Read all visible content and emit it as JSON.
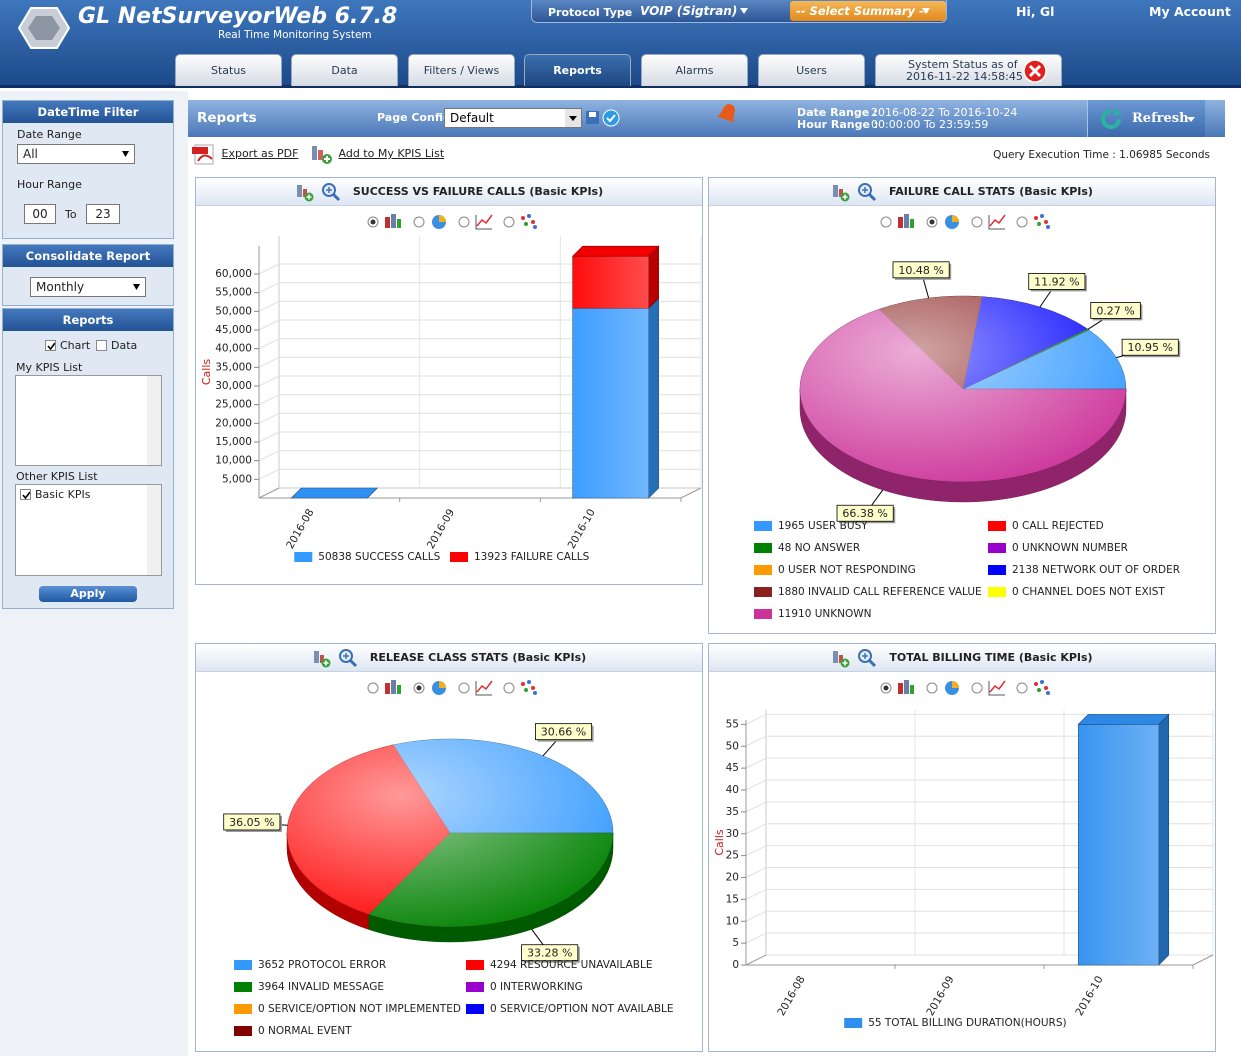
{
  "header": {
    "title": "GL NetSurveyorWeb 6.7.8",
    "subtitle": "Real Time Monitoring System",
    "protocol_label": "Protocol Type",
    "protocol_value": "VOIP (Sigtran)",
    "summary": "-- Select Summary --",
    "greeting": "Hi, Gl",
    "account": "My Account"
  },
  "tabs": [
    "Status",
    "Data",
    "Filters / Views",
    "Reports",
    "Alarms",
    "Users"
  ],
  "active_tab": 3,
  "system_status": {
    "label": "System Status as of",
    "time": "2016-11-22 14:58:45"
  },
  "sidebar": {
    "datetime_title": "DateTime Filter",
    "date_range_label": "Date Range",
    "date_range_value": "All",
    "hour_range_label": "Hour Range",
    "hour_from": "00",
    "hour_to_label": "To",
    "hour_to": "23",
    "consolidate_title": "Consolidate Report",
    "consolidate_value": "Monthly",
    "reports_title": "Reports",
    "chart_option": "Chart",
    "data_option": "Data",
    "my_kpis_label": "My KPIS List",
    "other_kpis_label": "Other KPIS List",
    "other_kpis_item": "Basic KPIs",
    "apply": "Apply"
  },
  "toolbar": {
    "title": "Reports",
    "page_config_label": "Page Config",
    "page_config_value": "Default",
    "date_range_label": "Date Range :",
    "date_range_value": "2016-08-22 To 2016-10-24",
    "hour_range_label": "Hour Range :",
    "hour_range_value": "00:00:00 To 23:59:59",
    "refresh": "Refresh",
    "export_pdf": "Export as PDF",
    "add_kpis": "Add to My KPIS List",
    "query_time": "Query Execution Time : 1.06985 Seconds"
  },
  "chart_data": [
    {
      "type": "bar",
      "title": "SUCCESS VS FAILURE CALLS (Basic KPIs)",
      "ylabel": "Calls",
      "categories": [
        "2016-08",
        "2016-09",
        "2016-10"
      ],
      "series": [
        {
          "name": "50838 SUCCESS CALLS",
          "color": "#3399ff",
          "values": [
            0,
            null,
            50838
          ]
        },
        {
          "name": "13923 FAILURE CALLS",
          "color": "#ff0000",
          "values": [
            null,
            null,
            13923
          ]
        }
      ],
      "ylim": [
        0,
        67500
      ],
      "yticks": [
        {
          "value": 5000,
          "label": "5,000"
        },
        {
          "value": 10000,
          "label": "10,000"
        },
        {
          "value": 15000,
          "label": "15,000"
        },
        {
          "value": 20000,
          "label": "20,000"
        },
        {
          "value": 25000,
          "label": "25,000"
        },
        {
          "value": 30000,
          "label": "30,000"
        },
        {
          "value": 35000,
          "label": "35,000"
        },
        {
          "value": 40000,
          "label": "40,000"
        },
        {
          "value": 45000,
          "label": "45,000"
        },
        {
          "value": 50000,
          "label": "50,000"
        },
        {
          "value": 55000,
          "label": "55,000"
        },
        {
          "value": 60000,
          "label": "60,000"
        }
      ],
      "grid": true
    },
    {
      "type": "pie",
      "title": "FAILURE CALL STATS (Basic KPIs)",
      "categories": [
        "1965 USER BUSY",
        "0 CALL REJECTED",
        "48 NO ANSWER",
        "0 UNKNOWN NUMBER",
        "0 USER NOT RESPONDING",
        "2138 NETWORK OUT OF ORDER",
        "1880 INVALID CALL REFERENCE VALUE",
        "0 CHANNEL DOES NOT EXIST",
        "11910 UNKNOWN"
      ],
      "values": [
        10.95,
        0,
        0.27,
        0,
        0,
        11.92,
        10.48,
        0,
        66.38
      ],
      "value_labels": [
        "10.95 %",
        null,
        "0.27 %",
        null,
        null,
        "11.92 %",
        "10.48 %",
        null,
        "66.38 %"
      ],
      "colors": [
        "#3399ff",
        "#ff0000",
        "#008000",
        "#9900cc",
        "#ff9900",
        "#0000ff",
        "#8a2020",
        "#ffff00",
        "#cc3399"
      ]
    },
    {
      "type": "pie",
      "title": "RELEASE CLASS STATS (Basic KPIs)",
      "categories": [
        "3652 PROTOCOL ERROR",
        "4294 RESOURCE UNAVAILABLE",
        "3964 INVALID MESSAGE",
        "0 INTERWORKING",
        "0 SERVICE/OPTION NOT IMPLEMENTED",
        "0 SERVICE/OPTION NOT AVAILABLE",
        "0 NORMAL EVENT"
      ],
      "values": [
        30.66,
        36.05,
        33.28,
        0,
        0,
        0,
        0
      ],
      "value_labels": [
        "30.66 %",
        "36.05 %",
        "33.28 %",
        null,
        null,
        null,
        null
      ],
      "colors": [
        "#3399ff",
        "#ff0000",
        "#008000",
        "#9900cc",
        "#ff9900",
        "#0000ff",
        "#800000"
      ]
    },
    {
      "type": "bar",
      "title": "TOTAL BILLING TIME (Basic KPIs)",
      "ylabel": "Calls",
      "categories": [
        "2016-08",
        "2016-09",
        "2016-10"
      ],
      "series": [
        {
          "name": "55 TOTAL BILLING DURATION(HOURS)",
          "color": "#2e8ff0",
          "values": [
            null,
            null,
            55
          ]
        }
      ],
      "ylim": [
        0,
        56
      ],
      "yticks": [
        0,
        5,
        10,
        15,
        20,
        25,
        30,
        35,
        40,
        45,
        50,
        55
      ],
      "grid": true
    }
  ]
}
